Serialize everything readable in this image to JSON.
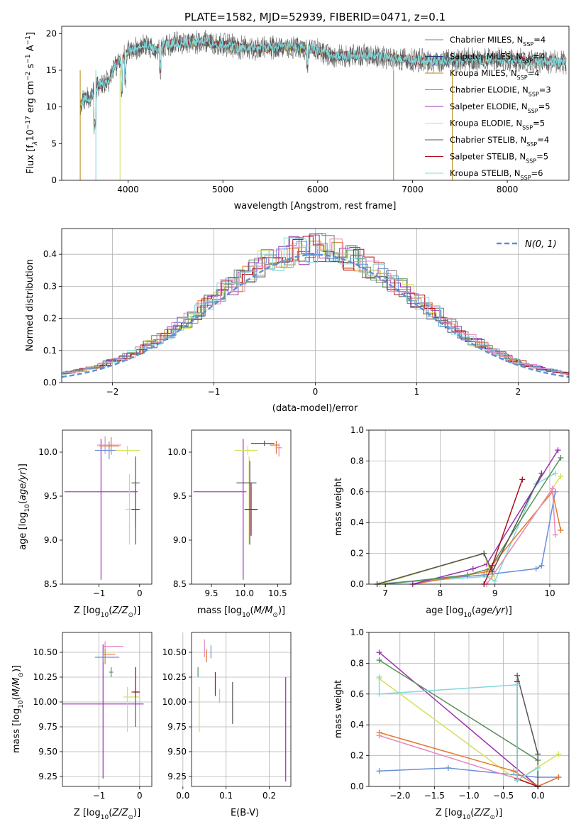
{
  "title": "PLATE=1582, MJD=52939, FIBERID=0471, z=0.1",
  "colors": {
    "Chabrier MILES": "#7f7f7f",
    "Salpeter MILES": "#1f3f7f",
    "Kroupa MILES": "#b8860b",
    "Chabrier ELODIE": "#5a8f5a",
    "Salpeter ELODIE": "#9b30b0",
    "Kroupa ELODIE": "#d4e05a",
    "Chabrier STELIB": "#555555",
    "Salpeter STELIB": "#b0101a",
    "Kroupa STELIB": "#7fd8dc",
    "blue": "#6a8fd8",
    "orange": "#e07a2e",
    "pink": "#e58ac0",
    "normal": "#5b8fd6"
  },
  "chart_data": [
    {
      "id": "spectrum",
      "type": "line",
      "xlabel": "wavelength [Angstrom, rest frame]",
      "ylabel_parts": [
        "Flux [f",
        "λ",
        "10",
        "−17",
        " erg cm",
        "−2",
        " s",
        "−1",
        " A",
        "−1",
        "]"
      ],
      "xlim": [
        3300,
        8650
      ],
      "ylim": [
        0,
        21
      ],
      "xticks": [
        4000,
        5000,
        6000,
        7000,
        8000
      ],
      "yticks": [
        0,
        5,
        10,
        15,
        20
      ],
      "x": [
        3500,
        3550,
        3600,
        3650,
        3700,
        3750,
        3800,
        3850,
        3900,
        3950,
        4000,
        4100,
        4200,
        4300,
        4400,
        4500,
        4600,
        4700,
        4800,
        4900,
        5000,
        5200,
        5400,
        5600,
        5800,
        6000,
        6200,
        6400,
        6600,
        6800,
        7000,
        7200,
        7400,
        7600,
        7800,
        8000,
        8200,
        8400,
        8600
      ],
      "y": [
        10.4,
        11.2,
        11.0,
        12.6,
        13.0,
        13.2,
        13.6,
        15.4,
        16.3,
        16.8,
        17.6,
        18.0,
        18.4,
        17.8,
        18.6,
        18.7,
        18.6,
        18.8,
        18.9,
        18.5,
        18.6,
        18.1,
        17.9,
        18.2,
        18.1,
        17.7,
        16.9,
        17.1,
        16.9,
        16.7,
        16.4,
        16.2,
        16.3,
        16.5,
        16.4,
        16.6,
        16.3,
        16.2,
        16.1
      ],
      "series": [
        {
          "label": "Chabrier MILES, N",
          "sub": "SSP",
          "n": "=4"
        },
        {
          "label": "Salpeter MILES, N",
          "sub": "SSP",
          "n": "=4"
        },
        {
          "label": "Kroupa MILES, N",
          "sub": "SSP",
          "n": "=4"
        },
        {
          "label": "Chabrier ELODIE, N",
          "sub": "SSP",
          "n": "=3"
        },
        {
          "label": "Salpeter ELODIE, N",
          "sub": "SSP",
          "n": "=5"
        },
        {
          "label": "Kroupa ELODIE, N",
          "sub": "SSP",
          "n": "=5"
        },
        {
          "label": "Chabrier STELIB, N",
          "sub": "SSP",
          "n": "=4"
        },
        {
          "label": "Salpeter STELIB, N",
          "sub": "SSP",
          "n": "=5"
        },
        {
          "label": "Kroupa STELIB, N",
          "sub": "SSP",
          "n": "=6"
        }
      ]
    },
    {
      "id": "residuals",
      "type": "histogram",
      "xlabel": "(data-model)/error",
      "ylabel": "Normed distribution",
      "xlim": [
        -2.5,
        2.5
      ],
      "ylim": [
        0,
        0.48
      ],
      "xticks": [
        -2,
        -1,
        0,
        1,
        2
      ],
      "yticks": [
        0.0,
        0.1,
        0.2,
        0.3,
        0.4
      ],
      "legend": "N(0, 1)",
      "grid": true
    },
    {
      "id": "age_vs_Z",
      "type": "scatter",
      "xlabel": "Z [log10(Z/Z⊙)]",
      "ylabel": "age  [log10(age/yr)]",
      "xlim": [
        -1.9,
        0.3
      ],
      "ylim": [
        8.5,
        10.25
      ],
      "xticks": [
        -1,
        0
      ],
      "yticks": [
        8.5,
        9.0,
        9.5,
        10.0
      ]
    },
    {
      "id": "age_vs_mass",
      "type": "scatter",
      "xlabel": "mass [log10(M/M⊙)]",
      "xlim": [
        9.2,
        10.7
      ],
      "ylim": [
        8.5,
        10.25
      ],
      "xticks": [
        9.5,
        10.0,
        10.5
      ],
      "yticks": [
        8.5,
        9.0,
        9.5,
        10.0
      ]
    },
    {
      "id": "weight_vs_age",
      "type": "line",
      "xlabel": "age  [log10(age/yr)]",
      "ylabel": "mass weight",
      "xlim": [
        6.7,
        10.35
      ],
      "ylim": [
        0,
        1
      ],
      "xticks": [
        7,
        8,
        9,
        10
      ],
      "yticks": [
        0.0,
        0.2,
        0.4,
        0.6,
        0.8,
        1.0
      ],
      "grid": true
    },
    {
      "id": "mass_vs_Z",
      "type": "scatter",
      "xlabel": "Z [log10(Z/Z⊙)]",
      "ylabel": "mass [log10(M/M⊙)]",
      "xlim": [
        -1.9,
        0.3
      ],
      "ylim": [
        9.15,
        10.7
      ],
      "xticks": [
        -1,
        0
      ],
      "yticks": [
        9.25,
        9.5,
        9.75,
        10.0,
        10.25,
        10.5
      ],
      "grid": true
    },
    {
      "id": "mass_vs_EBV",
      "type": "scatter",
      "xlabel": "E(B-V)",
      "xlim": [
        0.02,
        0.25
      ],
      "ylim": [
        9.15,
        10.7
      ],
      "xticks": [
        0.0,
        0.1,
        0.2
      ],
      "yticks": [
        9.25,
        9.5,
        9.75,
        10.0,
        10.25,
        10.5
      ],
      "grid": true
    },
    {
      "id": "weight_vs_Z",
      "type": "line",
      "xlabel": "Z [log10(Z/Z⊙)]",
      "ylabel": "mass weight",
      "xlim": [
        -2.45,
        0.45
      ],
      "ylim": [
        0,
        1
      ],
      "xticks": [
        -2.0,
        -1.5,
        -1.0,
        -0.5,
        0.0
      ],
      "yticks": [
        0.0,
        0.2,
        0.4,
        0.6,
        0.8,
        1.0
      ],
      "grid": true
    }
  ]
}
